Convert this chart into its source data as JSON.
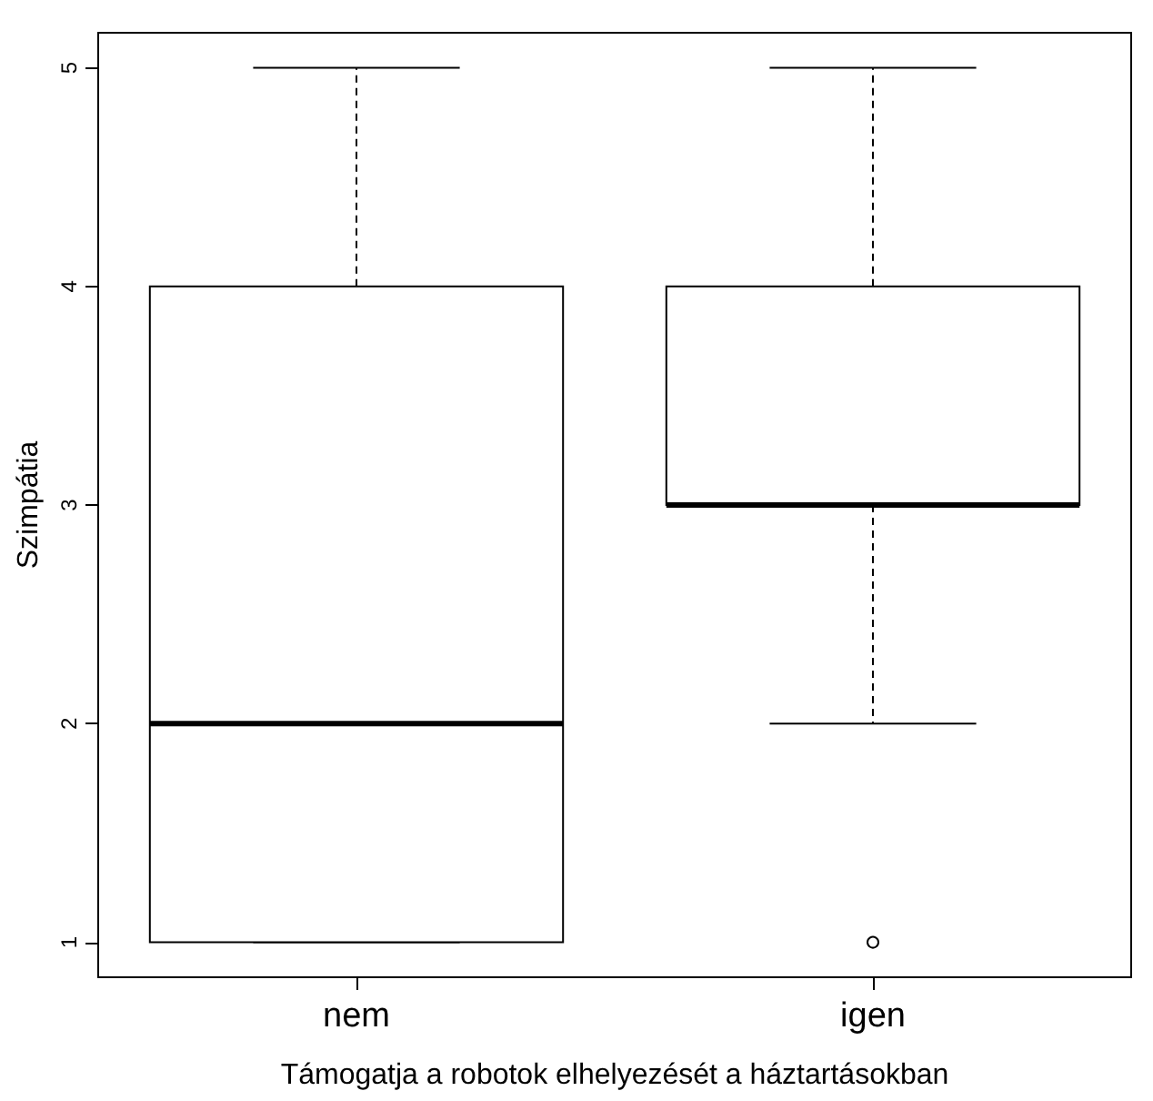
{
  "chart_data": {
    "type": "box",
    "categories": [
      "nem",
      "igen"
    ],
    "boxes": [
      {
        "low": 1,
        "q1": 1,
        "median": 2,
        "q3": 4,
        "high": 5
      },
      {
        "low": 2,
        "q1": 3,
        "median": 3,
        "q3": 4,
        "high": 5,
        "outliers": [
          1
        ]
      }
    ],
    "xlabel": "Támogatja a robotok elhelyezését a háztartásokban",
    "ylabel": "Szimpátia",
    "ylim": [
      0.84,
      5.16
    ],
    "yticks": [
      1,
      2,
      3,
      4,
      5
    ],
    "grid": false
  }
}
